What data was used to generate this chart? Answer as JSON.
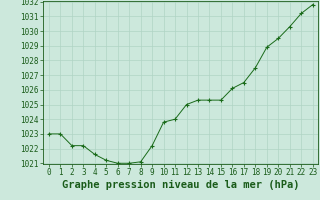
{
  "x": [
    0,
    1,
    2,
    3,
    4,
    5,
    6,
    7,
    8,
    9,
    10,
    11,
    12,
    13,
    14,
    15,
    16,
    17,
    18,
    19,
    20,
    21,
    22,
    23
  ],
  "y": [
    1023.0,
    1023.0,
    1022.2,
    1022.2,
    1021.6,
    1021.2,
    1021.0,
    1021.0,
    1021.1,
    1022.2,
    1023.8,
    1024.0,
    1025.0,
    1025.3,
    1025.3,
    1025.3,
    1026.1,
    1026.5,
    1027.5,
    1028.9,
    1029.5,
    1030.3,
    1031.2,
    1031.8
  ],
  "ylim": [
    1021.0,
    1032.0
  ],
  "yticks": [
    1021,
    1022,
    1023,
    1024,
    1025,
    1026,
    1027,
    1028,
    1029,
    1030,
    1031,
    1032
  ],
  "xticks": [
    0,
    1,
    2,
    3,
    4,
    5,
    6,
    7,
    8,
    9,
    10,
    11,
    12,
    13,
    14,
    15,
    16,
    17,
    18,
    19,
    20,
    21,
    22,
    23
  ],
  "line_color": "#1a6b1a",
  "marker": "+",
  "bg_color": "#cce8dc",
  "grid_color": "#b0d4c4",
  "xlabel": "Graphe pression niveau de la mer (hPa)",
  "xlabel_color": "#1a5c1a",
  "tick_color": "#1a5c1a",
  "axis_color": "#1a5c1a",
  "tick_fontsize": 5.5,
  "xlabel_fontsize": 7.5
}
